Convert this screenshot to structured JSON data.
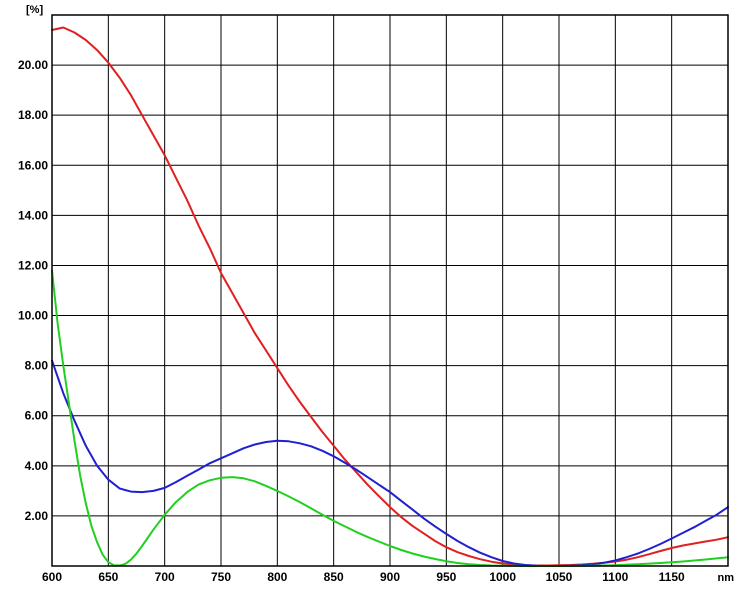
{
  "chart_data": {
    "type": "line",
    "title": "",
    "ylabel": "[%]",
    "xlabel": "nm",
    "xlim": [
      600,
      1200
    ],
    "ylim": [
      0,
      22
    ],
    "grid": true,
    "x_ticks": [
      600,
      650,
      700,
      750,
      800,
      850,
      900,
      950,
      1000,
      1050,
      1100,
      1150
    ],
    "x_tick_labels": [
      "600",
      "650",
      "700",
      "750",
      "800",
      "850",
      "900",
      "950",
      "1000",
      "1050",
      "1100",
      "1150"
    ],
    "y_ticks": [
      2,
      4,
      6,
      8,
      10,
      12,
      14,
      16,
      18,
      20
    ],
    "y_tick_labels": [
      "2.00",
      "4.00",
      "6.00",
      "8.00",
      "10.00",
      "12.00",
      "14.00",
      "16.00",
      "18.00",
      "20.00"
    ],
    "series": [
      {
        "color": "#e02020",
        "points": [
          [
            600,
            21.4
          ],
          [
            610,
            21.5
          ],
          [
            620,
            21.3
          ],
          [
            630,
            21.0
          ],
          [
            640,
            20.6
          ],
          [
            650,
            20.1
          ],
          [
            660,
            19.5
          ],
          [
            670,
            18.8
          ],
          [
            680,
            18.0
          ],
          [
            690,
            17.2
          ],
          [
            700,
            16.4
          ],
          [
            710,
            15.5
          ],
          [
            720,
            14.6
          ],
          [
            730,
            13.6
          ],
          [
            740,
            12.7
          ],
          [
            750,
            11.7
          ],
          [
            760,
            10.9
          ],
          [
            770,
            10.1
          ],
          [
            780,
            9.3
          ],
          [
            790,
            8.6
          ],
          [
            800,
            7.9
          ],
          [
            810,
            7.2
          ],
          [
            820,
            6.55
          ],
          [
            830,
            5.95
          ],
          [
            840,
            5.35
          ],
          [
            850,
            4.8
          ],
          [
            860,
            4.25
          ],
          [
            870,
            3.75
          ],
          [
            880,
            3.25
          ],
          [
            890,
            2.8
          ],
          [
            900,
            2.35
          ],
          [
            910,
            1.95
          ],
          [
            920,
            1.6
          ],
          [
            930,
            1.3
          ],
          [
            940,
            1.0
          ],
          [
            950,
            0.75
          ],
          [
            960,
            0.55
          ],
          [
            970,
            0.4
          ],
          [
            980,
            0.27
          ],
          [
            990,
            0.17
          ],
          [
            1000,
            0.1
          ],
          [
            1010,
            0.05
          ],
          [
            1020,
            0.03
          ],
          [
            1030,
            0.02
          ],
          [
            1040,
            0.02
          ],
          [
            1050,
            0.03
          ],
          [
            1060,
            0.04
          ],
          [
            1070,
            0.06
          ],
          [
            1080,
            0.09
          ],
          [
            1090,
            0.13
          ],
          [
            1100,
            0.18
          ],
          [
            1110,
            0.25
          ],
          [
            1120,
            0.35
          ],
          [
            1130,
            0.47
          ],
          [
            1140,
            0.6
          ],
          [
            1150,
            0.72
          ],
          [
            1160,
            0.82
          ],
          [
            1170,
            0.9
          ],
          [
            1180,
            0.98
          ],
          [
            1190,
            1.05
          ],
          [
            1200,
            1.15
          ]
        ]
      },
      {
        "color": "#2020d0",
        "points": [
          [
            600,
            8.2
          ],
          [
            610,
            6.9
          ],
          [
            620,
            5.8
          ],
          [
            630,
            4.8
          ],
          [
            640,
            4.0
          ],
          [
            650,
            3.45
          ],
          [
            660,
            3.1
          ],
          [
            670,
            2.97
          ],
          [
            680,
            2.95
          ],
          [
            690,
            3.0
          ],
          [
            700,
            3.12
          ],
          [
            710,
            3.35
          ],
          [
            720,
            3.6
          ],
          [
            730,
            3.85
          ],
          [
            740,
            4.1
          ],
          [
            750,
            4.3
          ],
          [
            760,
            4.5
          ],
          [
            770,
            4.7
          ],
          [
            780,
            4.85
          ],
          [
            790,
            4.95
          ],
          [
            800,
            5.0
          ],
          [
            810,
            4.98
          ],
          [
            820,
            4.9
          ],
          [
            830,
            4.78
          ],
          [
            840,
            4.6
          ],
          [
            850,
            4.38
          ],
          [
            860,
            4.12
          ],
          [
            870,
            3.85
          ],
          [
            880,
            3.55
          ],
          [
            890,
            3.25
          ],
          [
            900,
            2.95
          ],
          [
            910,
            2.6
          ],
          [
            920,
            2.25
          ],
          [
            930,
            1.9
          ],
          [
            940,
            1.58
          ],
          [
            950,
            1.28
          ],
          [
            960,
            1.0
          ],
          [
            970,
            0.75
          ],
          [
            980,
            0.53
          ],
          [
            990,
            0.35
          ],
          [
            1000,
            0.2
          ],
          [
            1010,
            0.1
          ],
          [
            1020,
            0.04
          ],
          [
            1030,
            0.01
          ],
          [
            1040,
            0.0
          ],
          [
            1050,
            0.0
          ],
          [
            1060,
            0.01
          ],
          [
            1070,
            0.03
          ],
          [
            1080,
            0.07
          ],
          [
            1090,
            0.13
          ],
          [
            1100,
            0.22
          ],
          [
            1110,
            0.35
          ],
          [
            1120,
            0.5
          ],
          [
            1130,
            0.68
          ],
          [
            1140,
            0.88
          ],
          [
            1150,
            1.1
          ],
          [
            1160,
            1.32
          ],
          [
            1170,
            1.55
          ],
          [
            1180,
            1.8
          ],
          [
            1190,
            2.05
          ],
          [
            1200,
            2.35
          ]
        ]
      },
      {
        "color": "#20d020",
        "points": [
          [
            600,
            11.8
          ],
          [
            605,
            9.7
          ],
          [
            610,
            8.0
          ],
          [
            615,
            6.5
          ],
          [
            620,
            5.0
          ],
          [
            625,
            3.6
          ],
          [
            630,
            2.5
          ],
          [
            635,
            1.6
          ],
          [
            640,
            0.95
          ],
          [
            645,
            0.45
          ],
          [
            650,
            0.15
          ],
          [
            655,
            0.03
          ],
          [
            660,
            0.02
          ],
          [
            665,
            0.08
          ],
          [
            670,
            0.25
          ],
          [
            675,
            0.5
          ],
          [
            680,
            0.8
          ],
          [
            690,
            1.45
          ],
          [
            700,
            2.05
          ],
          [
            710,
            2.55
          ],
          [
            720,
            2.95
          ],
          [
            730,
            3.25
          ],
          [
            740,
            3.42
          ],
          [
            750,
            3.52
          ],
          [
            760,
            3.55
          ],
          [
            770,
            3.5
          ],
          [
            780,
            3.38
          ],
          [
            790,
            3.2
          ],
          [
            800,
            3.0
          ],
          [
            810,
            2.78
          ],
          [
            820,
            2.55
          ],
          [
            830,
            2.3
          ],
          [
            840,
            2.05
          ],
          [
            850,
            1.8
          ],
          [
            860,
            1.58
          ],
          [
            870,
            1.36
          ],
          [
            880,
            1.16
          ],
          [
            890,
            0.98
          ],
          [
            900,
            0.8
          ],
          [
            910,
            0.64
          ],
          [
            920,
            0.5
          ],
          [
            930,
            0.38
          ],
          [
            940,
            0.28
          ],
          [
            950,
            0.19
          ],
          [
            960,
            0.12
          ],
          [
            970,
            0.07
          ],
          [
            980,
            0.04
          ],
          [
            990,
            0.02
          ],
          [
            1000,
            0.01
          ],
          [
            1020,
            0.0
          ],
          [
            1040,
            0.0
          ],
          [
            1060,
            0.0
          ],
          [
            1080,
            0.01
          ],
          [
            1100,
            0.03
          ],
          [
            1120,
            0.07
          ],
          [
            1140,
            0.12
          ],
          [
            1160,
            0.18
          ],
          [
            1180,
            0.26
          ],
          [
            1200,
            0.35
          ]
        ]
      }
    ]
  }
}
